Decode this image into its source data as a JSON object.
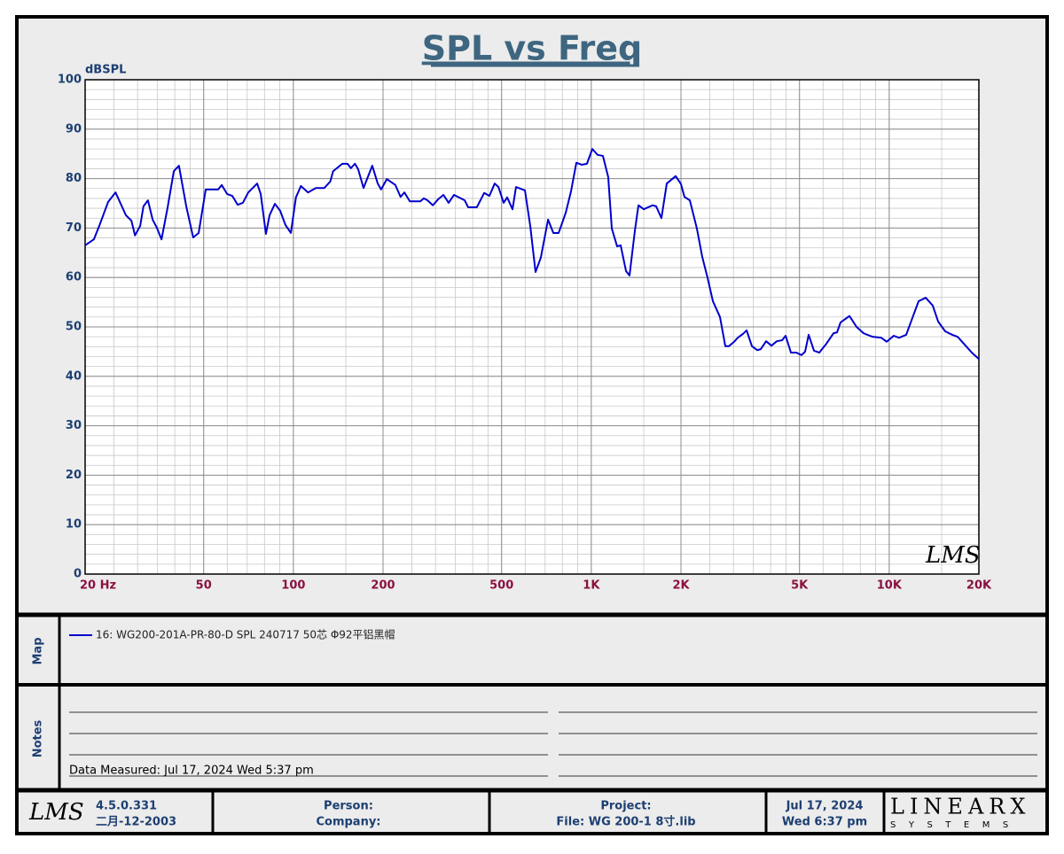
{
  "chart_data": {
    "type": "line",
    "title": "SPL vs Freq",
    "ylabel": "dBSPL",
    "watermark": "LMS",
    "xscale": "log",
    "xlim": [
      20,
      20000
    ],
    "ylim": [
      0,
      100
    ],
    "xticks": [
      {
        "value": 20,
        "label": "20  Hz"
      },
      50,
      100,
      200,
      500,
      {
        "value": 1000,
        "label": "1K"
      },
      {
        "value": 2000,
        "label": "2K"
      },
      {
        "value": 5000,
        "label": "5K"
      },
      {
        "value": 10000,
        "label": "10K"
      },
      {
        "value": 20000,
        "label": "20K"
      }
    ],
    "yticks": [
      0,
      10,
      20,
      30,
      40,
      50,
      60,
      70,
      80,
      90,
      100
    ],
    "grid": true,
    "x": [
      20,
      21.4,
      22.3,
      23.9,
      25.3,
      27.4,
      28.6,
      29.4,
      30.6,
      31.4,
      32.5,
      33.7,
      34.8,
      36.1,
      37.8,
      39.7,
      41.3,
      43.7,
      46.1,
      48.1,
      50.8,
      53.7,
      55.9,
      57.5,
      59.9,
      62.4,
      65.0,
      67.7,
      70.6,
      75.6,
      77.7,
      80.9,
      83.2,
      86.7,
      90.3,
      94.1,
      98.1,
      102,
      106,
      112,
      119,
      127,
      133,
      136,
      146,
      152,
      156,
      161,
      165,
      172,
      184,
      192,
      197,
      206,
      220,
      229,
      236,
      246,
      267,
      274,
      282,
      294,
      306,
      319,
      332,
      346,
      376,
      386,
      413,
      437,
      455,
      474,
      488,
      508,
      522,
      544,
      559,
      599,
      624,
      650,
      677,
      716,
      746,
      777,
      821,
      855,
      891,
      928,
      967,
      1008,
      1050,
      1094,
      1140,
      1172,
      1221,
      1255,
      1308,
      1344,
      1401,
      1440,
      1500,
      1606,
      1651,
      1720,
      1792,
      1920,
      2000,
      2055,
      2142,
      2262,
      2357,
      2457,
      2560,
      2704,
      2818,
      2897,
      3018,
      3101,
      3232,
      3322,
      3461,
      3607,
      3707,
      3863,
      4025,
      4194,
      4369,
      4491,
      4680,
      4876,
      5080,
      5221,
      5366,
      5591,
      5826,
      6154,
      6501,
      6682,
      6867,
      7355,
      7770,
      8208,
      8790,
      9410,
      9806,
      10359,
      10794,
      11403,
      12045,
      12551,
      13259,
      14005,
      14593,
      15416,
      16284,
      16968,
      17923,
      18933,
      20000
    ],
    "series": [
      {
        "name": "16: WG200-201A-PR-80-D SPL 240717 50芯 Φ92平铝黑帽",
        "color": "#0000cc",
        "values": [
          66.5,
          67.7,
          70.4,
          75.3,
          77.2,
          72.6,
          71.5,
          68.5,
          70.4,
          74.4,
          75.6,
          71.7,
          70.1,
          67.7,
          74,
          81.5,
          82.6,
          74.4,
          68.1,
          69,
          77.8,
          77.8,
          77.8,
          78.7,
          76.9,
          76.5,
          74.7,
          75.1,
          77.2,
          79,
          76.9,
          68.8,
          72.6,
          74.9,
          73.5,
          70.6,
          69,
          76.2,
          78.5,
          77.2,
          78.1,
          78.1,
          79.4,
          81.5,
          83,
          83,
          82.1,
          83,
          81.9,
          78.1,
          82.6,
          79,
          77.8,
          79.9,
          78.7,
          76.3,
          77.2,
          75.4,
          75.4,
          76,
          75.6,
          74.6,
          75.8,
          76.7,
          75.1,
          76.7,
          75.6,
          74.2,
          74.2,
          77.1,
          76.5,
          79,
          78.3,
          75.1,
          76.2,
          73.8,
          78.3,
          77.6,
          70.4,
          61.1,
          64,
          71.7,
          69,
          69,
          73.1,
          77.4,
          83.2,
          82.8,
          83,
          86,
          84.8,
          84.6,
          80.3,
          69.9,
          66.3,
          66.5,
          61.3,
          60.4,
          69.5,
          74.6,
          73.8,
          74.6,
          74.4,
          72,
          79,
          80.5,
          78.9,
          76.3,
          75.6,
          69.9,
          64.2,
          59.9,
          55.2,
          52,
          46.1,
          46.1,
          47,
          47.8,
          48.6,
          49.3,
          46.1,
          45.3,
          45.5,
          47.1,
          46.2,
          47.1,
          47.3,
          48.2,
          44.8,
          44.8,
          44.3,
          45,
          48.4,
          45.2,
          44.8,
          46.6,
          48.7,
          48.9,
          50.9,
          52.2,
          50,
          48.7,
          48,
          47.8,
          47,
          48.2,
          47.8,
          48.4,
          52.3,
          55.2,
          55.9,
          54.3,
          51.1,
          49.1,
          48.4,
          48,
          46.4,
          44.8,
          43.5
        ]
      }
    ]
  },
  "map": {
    "label": "Map"
  },
  "notes": {
    "label": "Notes",
    "text": "Data Measured: Jul 17, 2024  Wed  5:37 pm"
  },
  "footer": {
    "logo": "LMS",
    "version": "4.5.0.331",
    "build_date": "二月-12-2003",
    "person": "Person:",
    "company": "Company:",
    "project": "Project:",
    "file": "File: WG 200-1 8寸.lib",
    "date": "Jul 17, 2024",
    "time": "Wed  6:37 pm",
    "brand": "LINEARX",
    "brand_sub": "SYSTEMS"
  }
}
